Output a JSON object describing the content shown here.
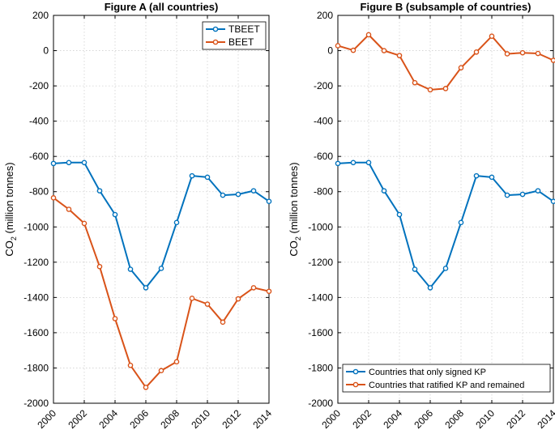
{
  "chart_data": [
    {
      "type": "line",
      "title": "Figure A (all countries)",
      "xlabel": "",
      "ylabel": "CO",
      "ylabel_subscript": "2",
      "ylabel_suffix": " (million tonnes)",
      "xlim": [
        2000,
        2014
      ],
      "ylim": [
        -2000,
        200
      ],
      "yticks": [
        200,
        0,
        -200,
        -400,
        -600,
        -800,
        -1000,
        -1200,
        -1400,
        -1600,
        -1800,
        -2000
      ],
      "xticks": [
        2000,
        2002,
        2004,
        2006,
        2008,
        2010,
        2012,
        2014
      ],
      "grid": true,
      "legend_position": "top-right",
      "x": [
        2000,
        2001,
        2002,
        2003,
        2004,
        2005,
        2006,
        2007,
        2008,
        2009,
        2010,
        2011,
        2012,
        2013,
        2014
      ],
      "series": [
        {
          "name": "TBEET",
          "color": "#0072BD",
          "values": [
            -640,
            -635,
            -635,
            -795,
            -930,
            -1240,
            -1345,
            -1235,
            -975,
            -710,
            -718,
            -820,
            -815,
            -795,
            -855
          ]
        },
        {
          "name": "BEET",
          "color": "#D95319",
          "values": [
            -835,
            -900,
            -980,
            -1225,
            -1520,
            -1785,
            -1910,
            -1815,
            -1765,
            -1405,
            -1438,
            -1540,
            -1408,
            -1345,
            -1365
          ]
        }
      ]
    },
    {
      "type": "line",
      "title": "Figure B (subsample of countries)",
      "xlabel": "",
      "ylabel": "CO",
      "ylabel_subscript": "2",
      "ylabel_suffix": " (million tonnes)",
      "xlim": [
        2000,
        2014
      ],
      "ylim": [
        -2000,
        200
      ],
      "yticks": [
        200,
        0,
        -200,
        -400,
        -600,
        -800,
        -1000,
        -1200,
        -1400,
        -1600,
        -1800,
        -2000
      ],
      "xticks": [
        2000,
        2002,
        2004,
        2006,
        2008,
        2010,
        2012,
        2014
      ],
      "grid": true,
      "legend_position": "bottom-right",
      "x": [
        2000,
        2001,
        2002,
        2003,
        2004,
        2005,
        2006,
        2007,
        2008,
        2009,
        2010,
        2011,
        2012,
        2013,
        2014
      ],
      "series": [
        {
          "name": "Countries that only signed KP",
          "color": "#0072BD",
          "values": [
            -640,
            -635,
            -635,
            -795,
            -930,
            -1240,
            -1345,
            -1235,
            -975,
            -710,
            -718,
            -820,
            -815,
            -795,
            -855
          ]
        },
        {
          "name": "Countries that ratified KP and remained",
          "color": "#D95319",
          "values": [
            28,
            2,
            90,
            0,
            -28,
            -182,
            -222,
            -215,
            -97,
            -8,
            82,
            -18,
            -12,
            -16,
            -55
          ]
        }
      ]
    }
  ]
}
